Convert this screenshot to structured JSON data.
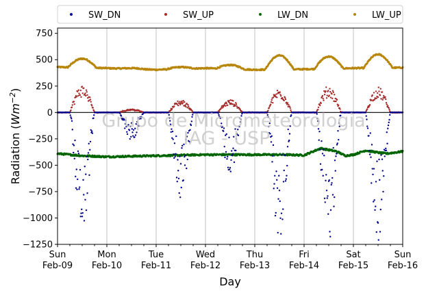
{
  "chart_data": {
    "type": "scatter",
    "title": "",
    "xlabel": "Day",
    "ylabel_prefix": "Radiation (",
    "ylabel_unit": "Wm",
    "ylabel_exp": "−2",
    "ylabel_suffix": ")",
    "ylim": [
      -1250,
      800
    ],
    "yticks": [
      -1250,
      -1000,
      -750,
      -500,
      -250,
      0,
      250,
      500,
      750
    ],
    "ytick_labels": [
      "−1250",
      "−1000",
      "−750",
      "−500",
      "−250",
      "0",
      "250",
      "500",
      "750"
    ],
    "xlim": [
      "2014-02-09",
      "2014-02-16"
    ],
    "xtick_days": [
      "Sun",
      "Mon",
      "Tue",
      "Wed",
      "Thu",
      "Fri",
      "Sat",
      "Sun"
    ],
    "xtick_dates": [
      "Feb-09",
      "Feb-10",
      "Feb-11",
      "Feb-12",
      "Feb-13",
      "Feb-14",
      "Feb-15",
      "Feb-16"
    ],
    "grid": "vertical",
    "zero_line": 0,
    "legend_position": "top",
    "watermark_line1": "Grupo de Micrometeorologia",
    "watermark_line2": "IAG - USP",
    "series": [
      {
        "name": "SW_DN",
        "color": "#00008b",
        "daily_min": [
          -1090,
          -250,
          -780,
          -570,
          -1140,
          -1180,
          -1160
        ],
        "daily_start_hour": [
          6,
          6,
          6,
          6,
          6,
          6,
          6
        ],
        "daily_end_hour": [
          18,
          18,
          18,
          18,
          18,
          18,
          18
        ]
      },
      {
        "name": "SW_UP",
        "color": "#a52a2a",
        "daily_max": [
          240,
          30,
          110,
          110,
          210,
          230,
          220
        ]
      },
      {
        "name": "LW_DN",
        "color": "#006400",
        "x_hours": [
          0,
          12,
          24,
          48,
          72,
          96,
          110,
          120,
          128,
          136,
          140,
          144,
          150,
          156,
          160,
          168
        ],
        "values": [
          -390,
          -410,
          -420,
          -410,
          -400,
          -400,
          -400,
          -405,
          -340,
          -370,
          -410,
          -400,
          -360,
          -380,
          -390,
          -370
        ]
      },
      {
        "name": "LW_UP",
        "color": "#b8860b",
        "night_values": [
          430,
          420,
          405,
          420,
          405,
          410,
          420,
          425
        ],
        "daily_peak": [
          510,
          420,
          430,
          450,
          540,
          530,
          550
        ]
      }
    ]
  }
}
